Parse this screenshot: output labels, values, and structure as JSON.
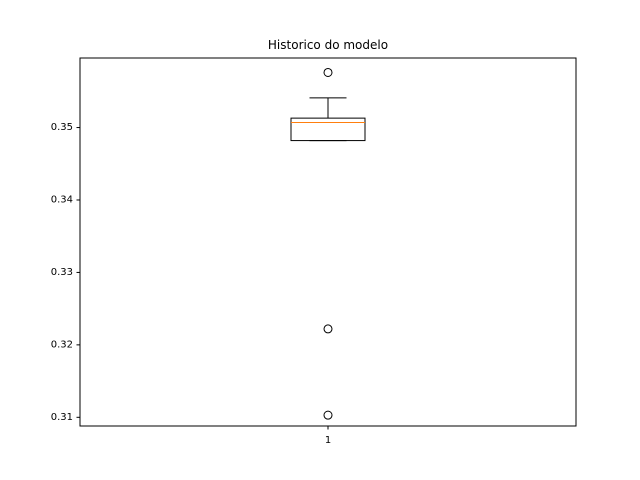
{
  "chart_data": {
    "type": "box",
    "title": "Historico do modelo",
    "xlabel": "",
    "ylabel": "",
    "categories": [
      "1"
    ],
    "ylim": [
      0.3088,
      0.3596
    ],
    "yticks": [
      {
        "value": 0.31,
        "label": "0.31"
      },
      {
        "value": 0.32,
        "label": "0.32"
      },
      {
        "value": 0.33,
        "label": "0.33"
      },
      {
        "value": 0.34,
        "label": "0.34"
      },
      {
        "value": 0.35,
        "label": "0.35"
      }
    ],
    "boxes": [
      {
        "category": "1",
        "whisker_low": 0.3482,
        "q1": 0.3482,
        "median": 0.3507,
        "q3": 0.3513,
        "whisker_high": 0.3541,
        "fliers": [
          0.3576,
          0.3222,
          0.3103
        ]
      }
    ],
    "colors": {
      "box": "#000000",
      "median": "#ff7f0e",
      "axis": "#000000"
    },
    "grid": false,
    "legend": "none"
  }
}
